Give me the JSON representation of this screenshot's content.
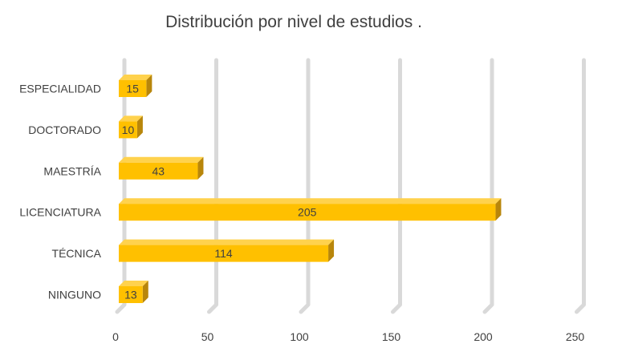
{
  "chart_data": {
    "type": "bar",
    "orientation": "horizontal",
    "title": "Distribución por nivel de estudios .",
    "categories": [
      "ESPECIALIDAD",
      "DOCTORADO",
      "MAESTRÍA",
      "LICENCIATURA",
      "TÉCNICA",
      "NINGUNO"
    ],
    "values": [
      15,
      10,
      43,
      205,
      114,
      13
    ],
    "xlim": [
      0,
      250
    ],
    "x_ticks": [
      "0",
      "50",
      "100",
      "150",
      "200",
      "250"
    ],
    "grid": true,
    "bar_color": "#FFC000",
    "bar_side_color": "#B8860B",
    "grid_color": "#D9D9D9",
    "text_color": "#404040"
  }
}
